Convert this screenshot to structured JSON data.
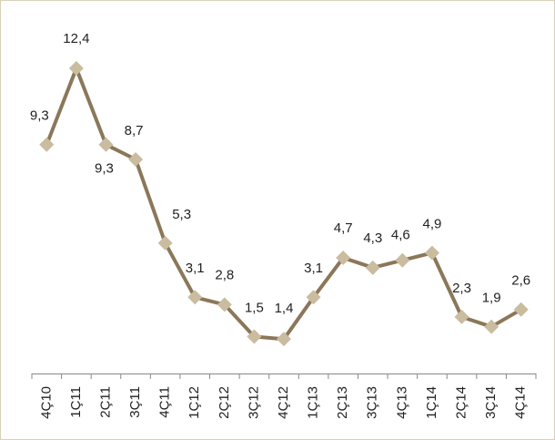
{
  "chart_data": {
    "type": "line",
    "categories": [
      "4Ç10",
      "1Ç11",
      "2Ç11",
      "3Ç11",
      "4Ç11",
      "1Ç12",
      "2Ç12",
      "3Ç12",
      "4Ç12",
      "1Ç13",
      "2Ç13",
      "3Ç13",
      "4Ç13",
      "1Ç14",
      "2Ç14",
      "3Ç14",
      "4Ç14"
    ],
    "values": [
      9.3,
      12.4,
      9.3,
      8.7,
      5.3,
      3.1,
      2.8,
      1.5,
      1.4,
      3.1,
      4.7,
      4.3,
      4.6,
      4.9,
      2.3,
      1.9,
      2.6
    ],
    "value_labels": [
      "9,3",
      "12,4",
      "9,3",
      "8,7",
      "5,3",
      "3,1",
      "2,8",
      "1,5",
      "1,4",
      "3,1",
      "4,7",
      "4,3",
      "4,6",
      "4,9",
      "2,3",
      "1,9",
      "2,6"
    ],
    "color": "#8b7759",
    "marker_color": "#c9bc9f"
  }
}
